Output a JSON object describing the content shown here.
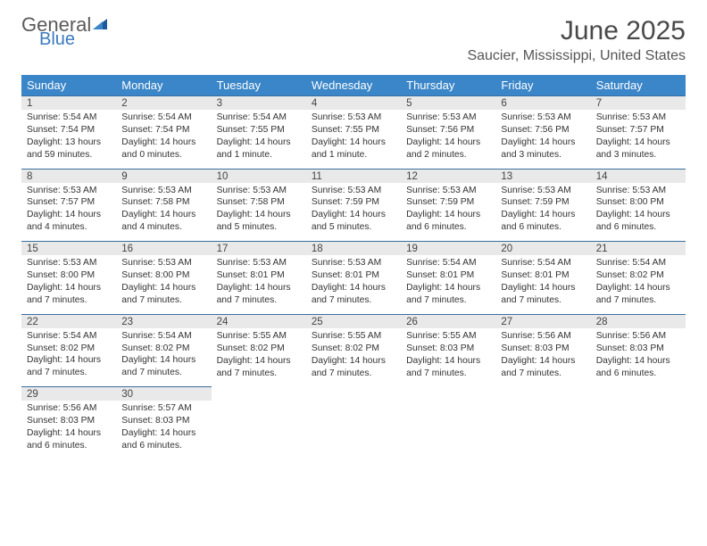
{
  "brand": {
    "word1": "General",
    "word2": "Blue",
    "color_gray": "#5a5a5a",
    "color_blue": "#3a7abd"
  },
  "header": {
    "month_title": "June 2025",
    "location": "Saucier, Mississippi, United States"
  },
  "colors": {
    "dow_bg": "#3a86c8",
    "dow_text": "#ffffff",
    "daynum_bg": "#e9e9e9",
    "divider": "#3a6ea0",
    "text": "#333333",
    "title": "#494949"
  },
  "fonts": {
    "title_size": 30,
    "location_size": 16,
    "dow_size": 13,
    "daynum_size": 11.5,
    "info_size": 10.3
  },
  "day_labels": [
    "Sunday",
    "Monday",
    "Tuesday",
    "Wednesday",
    "Thursday",
    "Friday",
    "Saturday"
  ],
  "days": {
    "1": {
      "sunrise": "5:54 AM",
      "sunset": "7:54 PM",
      "daylight": "13 hours and 59 minutes."
    },
    "2": {
      "sunrise": "5:54 AM",
      "sunset": "7:54 PM",
      "daylight": "14 hours and 0 minutes."
    },
    "3": {
      "sunrise": "5:54 AM",
      "sunset": "7:55 PM",
      "daylight": "14 hours and 1 minute."
    },
    "4": {
      "sunrise": "5:53 AM",
      "sunset": "7:55 PM",
      "daylight": "14 hours and 1 minute."
    },
    "5": {
      "sunrise": "5:53 AM",
      "sunset": "7:56 PM",
      "daylight": "14 hours and 2 minutes."
    },
    "6": {
      "sunrise": "5:53 AM",
      "sunset": "7:56 PM",
      "daylight": "14 hours and 3 minutes."
    },
    "7": {
      "sunrise": "5:53 AM",
      "sunset": "7:57 PM",
      "daylight": "14 hours and 3 minutes."
    },
    "8": {
      "sunrise": "5:53 AM",
      "sunset": "7:57 PM",
      "daylight": "14 hours and 4 minutes."
    },
    "9": {
      "sunrise": "5:53 AM",
      "sunset": "7:58 PM",
      "daylight": "14 hours and 4 minutes."
    },
    "10": {
      "sunrise": "5:53 AM",
      "sunset": "7:58 PM",
      "daylight": "14 hours and 5 minutes."
    },
    "11": {
      "sunrise": "5:53 AM",
      "sunset": "7:59 PM",
      "daylight": "14 hours and 5 minutes."
    },
    "12": {
      "sunrise": "5:53 AM",
      "sunset": "7:59 PM",
      "daylight": "14 hours and 6 minutes."
    },
    "13": {
      "sunrise": "5:53 AM",
      "sunset": "7:59 PM",
      "daylight": "14 hours and 6 minutes."
    },
    "14": {
      "sunrise": "5:53 AM",
      "sunset": "8:00 PM",
      "daylight": "14 hours and 6 minutes."
    },
    "15": {
      "sunrise": "5:53 AM",
      "sunset": "8:00 PM",
      "daylight": "14 hours and 7 minutes."
    },
    "16": {
      "sunrise": "5:53 AM",
      "sunset": "8:00 PM",
      "daylight": "14 hours and 7 minutes."
    },
    "17": {
      "sunrise": "5:53 AM",
      "sunset": "8:01 PM",
      "daylight": "14 hours and 7 minutes."
    },
    "18": {
      "sunrise": "5:53 AM",
      "sunset": "8:01 PM",
      "daylight": "14 hours and 7 minutes."
    },
    "19": {
      "sunrise": "5:54 AM",
      "sunset": "8:01 PM",
      "daylight": "14 hours and 7 minutes."
    },
    "20": {
      "sunrise": "5:54 AM",
      "sunset": "8:01 PM",
      "daylight": "14 hours and 7 minutes."
    },
    "21": {
      "sunrise": "5:54 AM",
      "sunset": "8:02 PM",
      "daylight": "14 hours and 7 minutes."
    },
    "22": {
      "sunrise": "5:54 AM",
      "sunset": "8:02 PM",
      "daylight": "14 hours and 7 minutes."
    },
    "23": {
      "sunrise": "5:54 AM",
      "sunset": "8:02 PM",
      "daylight": "14 hours and 7 minutes."
    },
    "24": {
      "sunrise": "5:55 AM",
      "sunset": "8:02 PM",
      "daylight": "14 hours and 7 minutes."
    },
    "25": {
      "sunrise": "5:55 AM",
      "sunset": "8:02 PM",
      "daylight": "14 hours and 7 minutes."
    },
    "26": {
      "sunrise": "5:55 AM",
      "sunset": "8:03 PM",
      "daylight": "14 hours and 7 minutes."
    },
    "27": {
      "sunrise": "5:56 AM",
      "sunset": "8:03 PM",
      "daylight": "14 hours and 7 minutes."
    },
    "28": {
      "sunrise": "5:56 AM",
      "sunset": "8:03 PM",
      "daylight": "14 hours and 6 minutes."
    },
    "29": {
      "sunrise": "5:56 AM",
      "sunset": "8:03 PM",
      "daylight": "14 hours and 6 minutes."
    },
    "30": {
      "sunrise": "5:57 AM",
      "sunset": "8:03 PM",
      "daylight": "14 hours and 6 minutes."
    }
  },
  "labels": {
    "sunrise": "Sunrise: ",
    "sunset": "Sunset: ",
    "daylight": "Daylight: "
  },
  "layout": {
    "first_day_column": 0,
    "days_in_month": 30,
    "columns": 7
  }
}
